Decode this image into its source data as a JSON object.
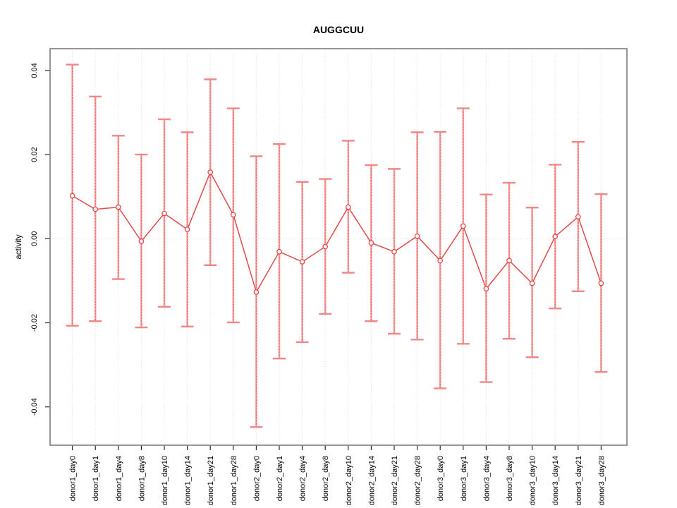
{
  "title": "AUGGCUU",
  "chart_data": {
    "type": "scatter",
    "title": "AUGGCUU",
    "xlabel": "",
    "ylabel": "activity",
    "ylim": [
      -0.049,
      0.0452
    ],
    "yticks": [
      -0.04,
      -0.02,
      0.0,
      0.02,
      0.04
    ],
    "ytick_labels": [
      "-0.04",
      "-0.02",
      "0.00",
      "0.02",
      "0.04"
    ],
    "grid": "vertical dotted gridline at every category; dotted horizontal reference line at y=0; no legend",
    "legend": "none",
    "error_bars": true,
    "point_style": "open-circle connected by line",
    "categories": [
      "donor1_day0",
      "donor1_day1",
      "donor1_day4",
      "donor1_day8",
      "donor1_day10",
      "donor1_day14",
      "donor1_day21",
      "donor1_day28",
      "donor2_day0",
      "donor2_day1",
      "donor2_day4",
      "donor2_day8",
      "donor2_day10",
      "donor2_day14",
      "donor2_day21",
      "donor2_day28",
      "donor3_day0",
      "donor3_day1",
      "donor3_day4",
      "donor3_day8",
      "donor3_day10",
      "donor3_day14",
      "donor3_day21",
      "donor3_day28"
    ],
    "series": [
      {
        "name": "activity",
        "values": [
          0.0102,
          0.007,
          0.0075,
          -0.0006,
          0.006,
          0.0022,
          0.0158,
          0.0057,
          -0.0127,
          -0.0031,
          -0.0055,
          -0.0019,
          0.0075,
          -0.001,
          -0.0031,
          0.0006,
          -0.0052,
          0.003,
          -0.0119,
          -0.0052,
          -0.0106,
          0.0005,
          0.0052,
          -0.0106
        ],
        "upper": [
          0.0414,
          0.0338,
          0.0245,
          0.02,
          0.0284,
          0.0253,
          0.0379,
          0.031,
          0.0196,
          0.0225,
          0.0135,
          0.0142,
          0.0233,
          0.0175,
          0.0166,
          0.0253,
          0.0254,
          0.031,
          0.0105,
          0.0133,
          0.0074,
          0.0176,
          0.023,
          0.0106
        ],
        "lower": [
          -0.0207,
          -0.0196,
          -0.0096,
          -0.0211,
          -0.0162,
          -0.0209,
          -0.0063,
          -0.0199,
          -0.0448,
          -0.0285,
          -0.0246,
          -0.0179,
          -0.0081,
          -0.0196,
          -0.0226,
          -0.024,
          -0.0356,
          -0.025,
          -0.0341,
          -0.0238,
          -0.0282,
          -0.0166,
          -0.0125,
          -0.0317
        ]
      }
    ],
    "colors": {
      "point": "#e64848",
      "line": "#e64848",
      "error_bar": "#f7a2a2",
      "error_bar_cap": "#f28585",
      "grid": "#dadada",
      "box": "#7d7d7d",
      "tick": "#2a2a2a",
      "text": "#000000",
      "background": "#ffffff"
    }
  }
}
